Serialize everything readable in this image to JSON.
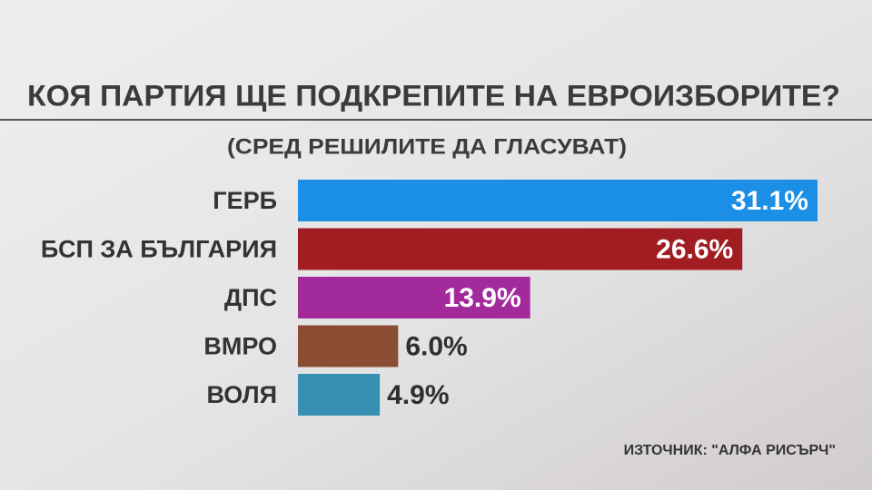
{
  "chart_data": {
    "type": "bar",
    "orientation": "horizontal",
    "title": "КОЯ ПАРТИЯ ЩЕ ПОДКРЕПИТЕ НА ЕВРОИЗБОРИТЕ?",
    "subtitle": "(СРЕД РЕШИЛИТЕ ДА ГЛАСУВАТ)",
    "categories": [
      "ГЕРБ",
      "БСП ЗА БЪЛГАРИЯ",
      "ДПС",
      "ВМРО",
      "ВОЛЯ"
    ],
    "values": [
      31.1,
      26.6,
      13.9,
      6.0,
      4.9
    ],
    "value_labels": [
      "31.1%",
      "26.6%",
      "13.9%",
      "6.0%",
      "4.9%"
    ],
    "colors": [
      "#1b8ee6",
      "#a11d22",
      "#a32a9b",
      "#8b4e35",
      "#3790b2"
    ],
    "source": "ИЗТОЧНИК: \"АЛФА РИСЪРЧ\""
  }
}
